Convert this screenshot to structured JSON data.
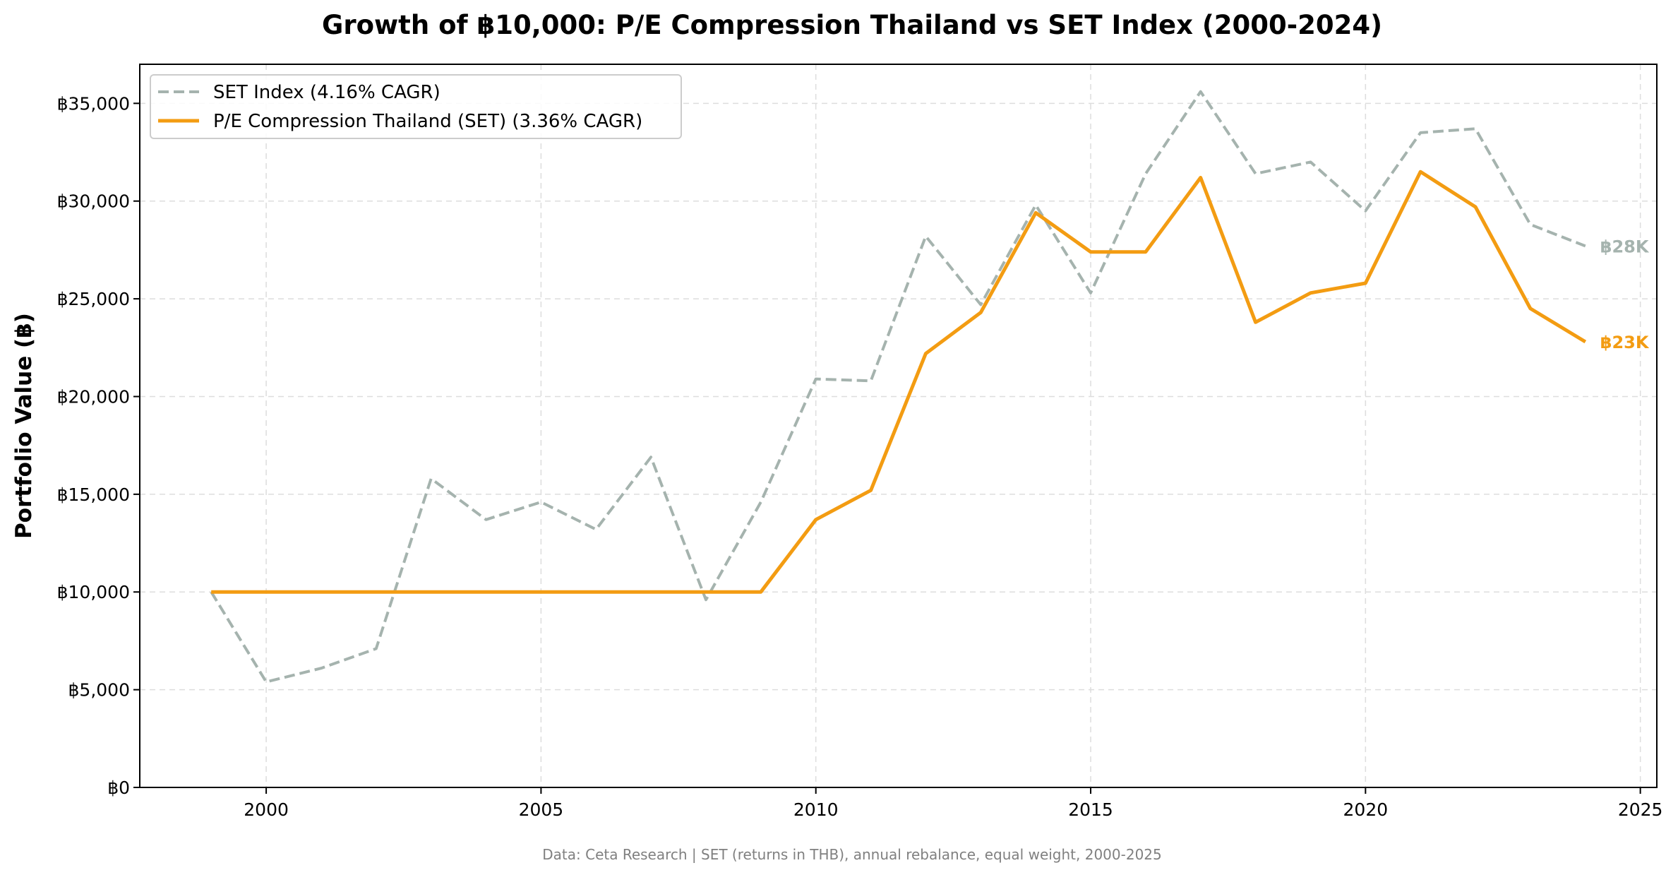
{
  "chart_data": {
    "type": "line",
    "title": "Growth of ฿10,000: P/E Compression Thailand vs SET Index (2000-2024)",
    "xlabel": "",
    "ylabel": "Portfolio Value (฿)",
    "xlim": [
      1997.7,
      2025.3
    ],
    "ylim": [
      0,
      37000
    ],
    "x_ticks": [
      2000,
      2005,
      2010,
      2015,
      2020,
      2025
    ],
    "x_tick_labels": [
      "2000",
      "2005",
      "2010",
      "2015",
      "2020",
      "2025"
    ],
    "y_ticks": [
      0,
      5000,
      10000,
      15000,
      20000,
      25000,
      30000,
      35000
    ],
    "y_tick_labels": [
      "฿0",
      "฿5,000",
      "฿10,000",
      "฿15,000",
      "฿20,000",
      "฿25,000",
      "฿30,000",
      "฿35,000"
    ],
    "grid": true,
    "legend_position": "top-left",
    "x": [
      1999,
      2000,
      2001,
      2002,
      2003,
      2004,
      2005,
      2006,
      2007,
      2008,
      2009,
      2010,
      2011,
      2012,
      2013,
      2014,
      2015,
      2016,
      2017,
      2018,
      2019,
      2020,
      2021,
      2022,
      2023,
      2024
    ],
    "series": [
      {
        "name": "SET Index (4.16% CAGR)",
        "color": "#a5b3ae",
        "style": "dashed",
        "values": [
          10000,
          5400,
          6100,
          7100,
          15800,
          13700,
          14600,
          13200,
          16900,
          9600,
          14600,
          20900,
          20800,
          28200,
          24700,
          29800,
          25300,
          31400,
          35600,
          31400,
          32000,
          29500,
          33500,
          33700,
          28800,
          27700
        ],
        "end_label": "฿28K"
      },
      {
        "name": "P/E Compression Thailand (SET) (3.36% CAGR)",
        "color": "#f39c12",
        "style": "solid",
        "values": [
          10000,
          10000,
          10000,
          10000,
          10000,
          10000,
          10000,
          10000,
          10000,
          10000,
          10000,
          13700,
          15200,
          22200,
          24300,
          29400,
          27400,
          27400,
          31200,
          23800,
          25300,
          25800,
          31500,
          29700,
          24500,
          22800
        ],
        "end_label": "฿23K"
      }
    ],
    "footer": "Data: Ceta Research | SET (returns in THB), annual rebalance, equal weight, 2000-2025"
  }
}
